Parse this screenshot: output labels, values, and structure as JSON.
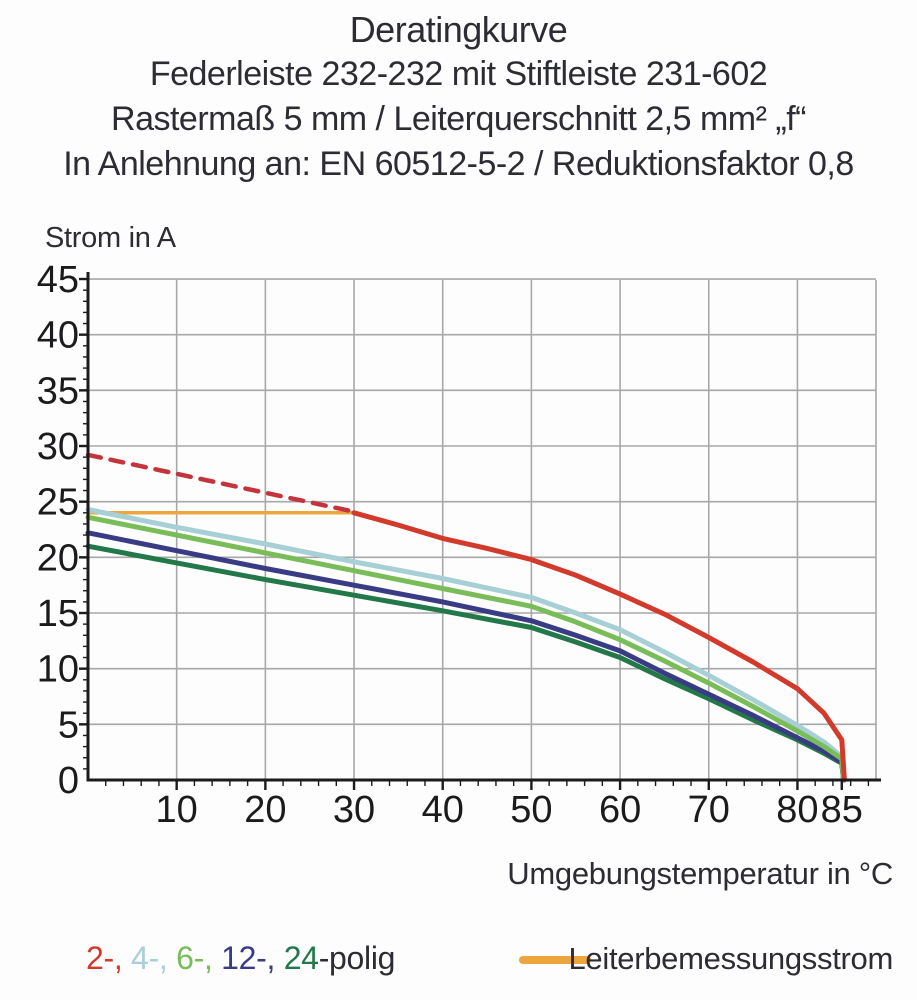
{
  "header": {
    "title": "Deratingkurve",
    "subtitle1": "Federleiste 232-232 mit Stiftleiste 231-602",
    "subtitle2": "Rastermaß 5 mm / Leiterquerschnitt 2,5 mm² „f“",
    "subtitle3": "In Anlehnung an: EN 60512-5-2 / Reduktionsfaktor 0,8"
  },
  "chart_data": {
    "type": "line",
    "title": "Deratingkurve",
    "xlabel": "Umgebungstemperatur in °C",
    "ylabel": "Strom in A",
    "xlim": [
      0,
      89
    ],
    "ylim": [
      0,
      45
    ],
    "x_major_ticks": [
      10,
      20,
      30,
      40,
      50,
      60,
      70,
      80,
      85
    ],
    "y_major_ticks": [
      0,
      5,
      10,
      15,
      20,
      25,
      30,
      35,
      40,
      45
    ],
    "x_minor_step": 2,
    "y_minor_step": 1,
    "grid": true,
    "grid_color": "#a8a8aa",
    "axis_color": "#1b1b1d",
    "series": [
      {
        "name": "Leiterbemessungsstrom",
        "color": "#eda63d",
        "width": 3.5,
        "points": [
          [
            0,
            24
          ],
          [
            30,
            24
          ]
        ]
      },
      {
        "name": "24-polig",
        "color": "#23784a",
        "width": 5,
        "points": [
          [
            0,
            21.0
          ],
          [
            10,
            19.5
          ],
          [
            20,
            18.0
          ],
          [
            30,
            16.6
          ],
          [
            40,
            15.2
          ],
          [
            50,
            13.7
          ],
          [
            55,
            12.4
          ],
          [
            60,
            11.0
          ],
          [
            65,
            9.1
          ],
          [
            70,
            7.3
          ],
          [
            75,
            5.4
          ],
          [
            80,
            3.6
          ],
          [
            83,
            2.4
          ],
          [
            85,
            1.5
          ],
          [
            85.2,
            0
          ]
        ]
      },
      {
        "name": "12-polig",
        "color": "#3a3b85",
        "width": 5,
        "points": [
          [
            0,
            22.2
          ],
          [
            10,
            20.6
          ],
          [
            20,
            19.0
          ],
          [
            30,
            17.5
          ],
          [
            40,
            16.0
          ],
          [
            50,
            14.3
          ],
          [
            55,
            13.0
          ],
          [
            60,
            11.6
          ],
          [
            65,
            9.6
          ],
          [
            70,
            7.7
          ],
          [
            75,
            5.8
          ],
          [
            80,
            3.8
          ],
          [
            83,
            2.6
          ],
          [
            85,
            1.6
          ],
          [
            85.2,
            0
          ]
        ]
      },
      {
        "name": "4-polig",
        "color": "#a6cfd6",
        "width": 5,
        "points": [
          [
            0,
            24.3
          ],
          [
            10,
            22.7
          ],
          [
            20,
            21.2
          ],
          [
            30,
            19.6
          ],
          [
            40,
            18.1
          ],
          [
            50,
            16.4
          ],
          [
            55,
            15.0
          ],
          [
            60,
            13.5
          ],
          [
            65,
            11.5
          ],
          [
            70,
            9.4
          ],
          [
            75,
            7.2
          ],
          [
            80,
            4.9
          ],
          [
            83,
            3.4
          ],
          [
            85,
            2.1
          ],
          [
            85.2,
            0
          ]
        ]
      },
      {
        "name": "6-polig",
        "color": "#79bd58",
        "width": 5,
        "points": [
          [
            0,
            23.6
          ],
          [
            10,
            22.0
          ],
          [
            20,
            20.4
          ],
          [
            30,
            18.8
          ],
          [
            40,
            17.2
          ],
          [
            50,
            15.6
          ],
          [
            55,
            14.2
          ],
          [
            60,
            12.6
          ],
          [
            65,
            10.7
          ],
          [
            70,
            8.7
          ],
          [
            75,
            6.6
          ],
          [
            80,
            4.4
          ],
          [
            83,
            3.0
          ],
          [
            85,
            1.9
          ],
          [
            85.2,
            0
          ]
        ]
      },
      {
        "name": "2-polig-unbegrenzt",
        "color": "#c5343c",
        "width": 4.5,
        "dash": "13 10",
        "points": [
          [
            0,
            29.2
          ],
          [
            10,
            27.5
          ],
          [
            20,
            25.8
          ],
          [
            30,
            24.1
          ]
        ]
      },
      {
        "name": "2-polig",
        "color": "#d23a2c",
        "width": 5,
        "points": [
          [
            30,
            24
          ],
          [
            35,
            22.9
          ],
          [
            40,
            21.7
          ],
          [
            45,
            20.8
          ],
          [
            50,
            19.8
          ],
          [
            55,
            18.4
          ],
          [
            60,
            16.7
          ],
          [
            65,
            14.9
          ],
          [
            70,
            12.8
          ],
          [
            75,
            10.6
          ],
          [
            80,
            8.2
          ],
          [
            83,
            6.0
          ],
          [
            85,
            3.6
          ],
          [
            85.3,
            0
          ]
        ]
      }
    ]
  },
  "legend": {
    "pole_items": [
      {
        "label": "2-,",
        "color": "#d23a2c"
      },
      {
        "label": "4-,",
        "color": "#a6cfd6"
      },
      {
        "label": "6-,",
        "color": "#79bd58"
      },
      {
        "label": "12-,",
        "color": "#3a3b85"
      },
      {
        "label": "24",
        "color": "#23784a"
      }
    ],
    "suffix": "-polig",
    "conductor_label": "Leiterbemessungsstrom",
    "conductor_color": "#eda63d"
  }
}
